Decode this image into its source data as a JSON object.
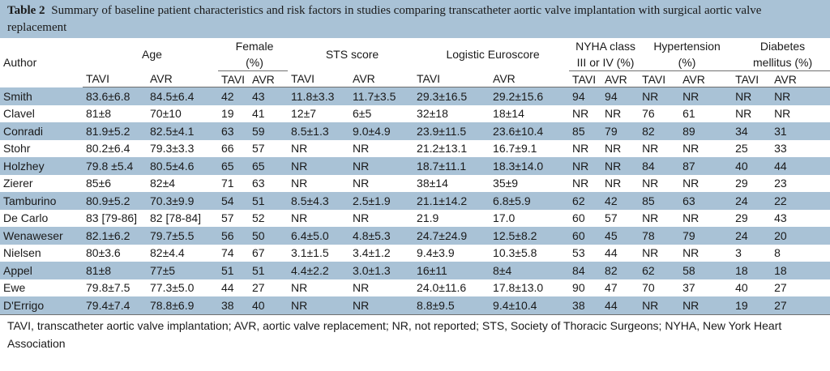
{
  "caption": {
    "label": "Table 2",
    "text": "Summary of baseline patient characteristics and risk factors in studies comparing transcatheter aortic valve implantation with surgical aortic valve replacement"
  },
  "header": {
    "author": "Author",
    "age": "Age",
    "female_line1": "Female",
    "female_line2": "(%)",
    "sts": "STS score",
    "euro": "Logistic Euroscore",
    "nyha_line1": "NYHA class",
    "nyha_line2": "III or IV (%)",
    "htn_line1": "Hypertension",
    "htn_line2": "(%)",
    "dm_line1": "Diabetes",
    "dm_line2": "mellitus (%)",
    "tavi": "TAVI",
    "avr": "AVR"
  },
  "rows": [
    [
      "Smith",
      "83.6±6.8",
      "84.5±6.4",
      "42",
      "43",
      "11.8±3.3",
      "11.7±3.5",
      "29.3±16.5",
      "29.2±15.6",
      "94",
      "94",
      "NR",
      "NR",
      "NR",
      "NR"
    ],
    [
      "Clavel",
      "81±8",
      "70±10",
      "19",
      "41",
      "12±7",
      "6±5",
      "32±18",
      "18±14",
      "NR",
      "NR",
      "76",
      "61",
      "NR",
      "NR"
    ],
    [
      "Conradi",
      "81.9±5.2",
      "82.5±4.1",
      "63",
      "59",
      "8.5±1.3",
      "9.0±4.9",
      "23.9±11.5",
      "23.6±10.4",
      "85",
      "79",
      "82",
      "89",
      "34",
      "31"
    ],
    [
      "Stohr",
      "80.2±6.4",
      "79.3±3.3",
      "66",
      "57",
      "NR",
      "NR",
      "21.2±13.1",
      "16.7±9.1",
      "NR",
      "NR",
      "NR",
      "NR",
      "25",
      "33"
    ],
    [
      "Holzhey",
      "79.8 ±5.4",
      "80.5±4.6",
      "65",
      "65",
      "NR",
      "NR",
      "18.7±11.1",
      "18.3±14.0",
      "NR",
      "NR",
      "84",
      "87",
      "40",
      "44"
    ],
    [
      "Zierer",
      "85±6",
      "82±4",
      "71",
      "63",
      "NR",
      "NR",
      "38±14",
      "35±9",
      "NR",
      "NR",
      "NR",
      "NR",
      "29",
      "23"
    ],
    [
      "Tamburino",
      "80.9±5.2",
      "70.3±9.9",
      "54",
      "51",
      "8.5±4.3",
      "2.5±1.9",
      "21.1±14.2",
      "6.8±5.9",
      "62",
      "42",
      "85",
      "63",
      "24",
      "22"
    ],
    [
      "De Carlo",
      "83 [79-86]",
      "82 [78-84]",
      "57",
      "52",
      "NR",
      "NR",
      "21.9",
      "17.0",
      "60",
      "57",
      "NR",
      "NR",
      "29",
      "43"
    ],
    [
      "Wenaweser",
      "82.1±6.2",
      "79.7±5.5",
      "56",
      "50",
      "6.4±5.0",
      "4.8±5.3",
      "24.7±24.9",
      "12.5±8.2",
      "60",
      "45",
      "78",
      "79",
      "24",
      "20"
    ],
    [
      "Nielsen",
      "80±3.6",
      "82±4.4",
      "74",
      "67",
      "3.1±1.5",
      "3.4±1.2",
      "9.4±3.9",
      "10.3±5.8",
      "53",
      "44",
      "NR",
      "NR",
      "3",
      "8"
    ],
    [
      "Appel",
      "81±8",
      "77±5",
      "51",
      "51",
      "4.4±2.2",
      "3.0±1.3",
      "16±11",
      "8±4",
      "84",
      "82",
      "62",
      "58",
      "18",
      "18"
    ],
    [
      "Ewe",
      "79.8±7.5",
      "77.3±5.0",
      "44",
      "27",
      "NR",
      "NR",
      "24.0±11.6",
      "17.8±13.0",
      "90",
      "47",
      "70",
      "37",
      "40",
      "27"
    ],
    [
      "D'Errigo",
      "79.4±7.4",
      "78.8±6.9",
      "38",
      "40",
      "NR",
      "NR",
      "8.8±9.5",
      "9.4±10.4",
      "38",
      "44",
      "NR",
      "NR",
      "19",
      "27"
    ]
  ],
  "footnote": "TAVI, transcatheter aortic valve implantation; AVR, aortic valve replacement; NR, not reported; STS, Society of Thoracic Surgeons; NYHA, New York Heart Association"
}
